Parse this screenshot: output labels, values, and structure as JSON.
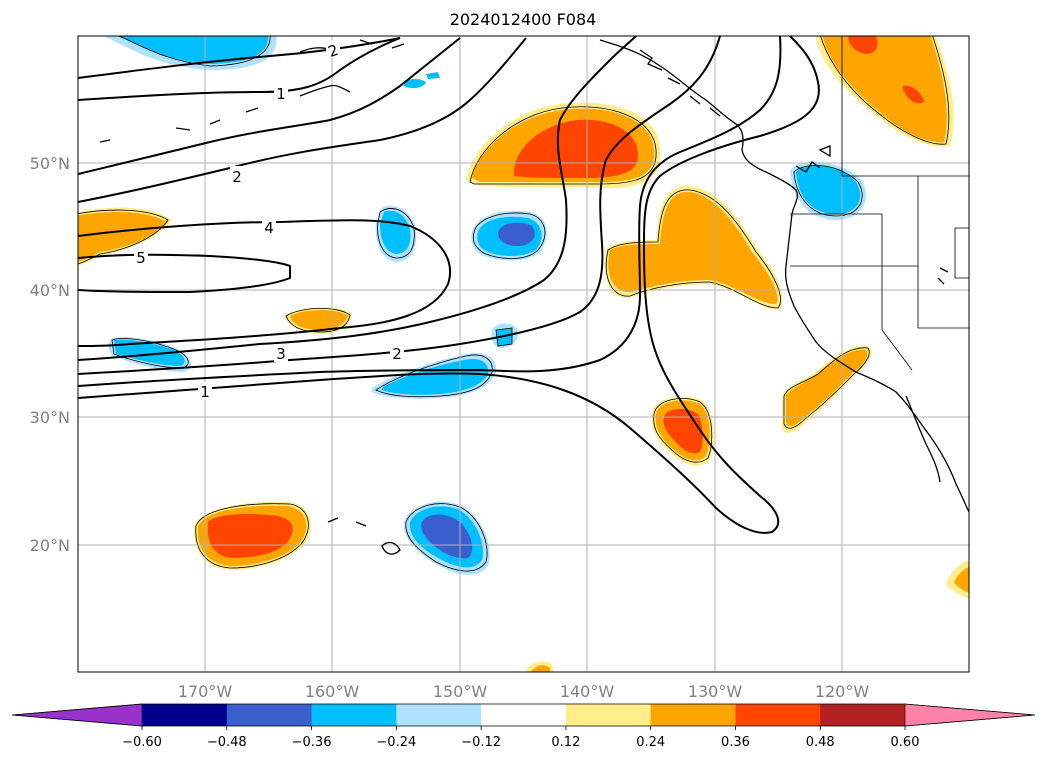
{
  "title": "2024012400 F084",
  "map": {
    "lat_ticks": [
      "50°N",
      "40°N",
      "30°N",
      "20°N"
    ],
    "lon_ticks": [
      "170°W",
      "160°W",
      "150°W",
      "140°W",
      "130°W",
      "120°W"
    ],
    "gridlines": true
  },
  "contour_labels": [
    "1",
    "2",
    "4",
    "5",
    "3",
    "2",
    "1",
    "2"
  ],
  "colorbar": {
    "orientation": "horizontal",
    "extend": "both",
    "ticks": [
      "−0.60",
      "−0.48",
      "−0.36",
      "−0.24",
      "−0.12",
      "0.12",
      "0.24",
      "0.36",
      "0.48",
      "0.60"
    ],
    "bins": [
      {
        "from": null,
        "to": -0.6,
        "color": "#9932CC"
      },
      {
        "from": -0.6,
        "to": -0.48,
        "color": "#00008B"
      },
      {
        "from": -0.48,
        "to": -0.36,
        "color": "#3A5FCD"
      },
      {
        "from": -0.36,
        "to": -0.24,
        "color": "#00BFFF"
      },
      {
        "from": -0.24,
        "to": -0.12,
        "color": "#B0E2FF"
      },
      {
        "from": -0.12,
        "to": 0.12,
        "color": "#FFFFFF"
      },
      {
        "from": 0.12,
        "to": 0.24,
        "color": "#FFEC8B"
      },
      {
        "from": 0.24,
        "to": 0.36,
        "color": "#FFA500"
      },
      {
        "from": 0.36,
        "to": 0.48,
        "color": "#FF4500"
      },
      {
        "from": 0.48,
        "to": 0.6,
        "color": "#B22222"
      },
      {
        "from": 0.6,
        "to": null,
        "color": "#FF82AB"
      }
    ]
  }
}
